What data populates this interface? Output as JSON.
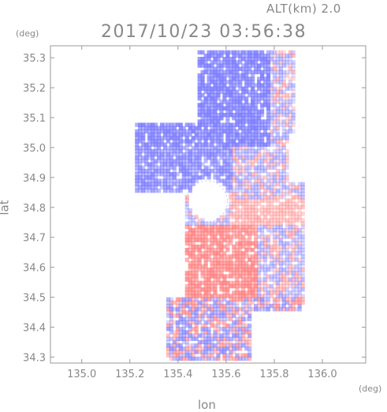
{
  "header": {
    "altitude": "ALT(km) 2.0",
    "timestamp": "2017/10/23 03:56:38"
  },
  "chart_data": {
    "type": "heatmap",
    "title": "2017/10/23 03:56:38",
    "subtitle": "ALT(km) 2.0",
    "xlabel": "lon",
    "ylabel": "lat",
    "x_unit": "(deg)",
    "y_unit": "(deg)",
    "xlim": [
      134.87,
      136.18
    ],
    "ylim": [
      34.28,
      35.34
    ],
    "x_ticks": [
      "135.0",
      "135.2",
      "135.4",
      "135.6",
      "135.8",
      "136.0"
    ],
    "y_ticks": [
      "34.3",
      "34.4",
      "34.5",
      "34.6",
      "34.7",
      "34.8",
      "34.9",
      "35.0",
      "35.1",
      "35.2",
      "35.3"
    ],
    "colors": {
      "negative": "#7b7bff",
      "positive": "#ff7b7b",
      "neutral": "#ffffff",
      "axis": "#999999"
    },
    "grid": false,
    "regions": [
      {
        "sign": "negative",
        "lon": [
          135.48,
          135.85
        ],
        "lat": [
          35.08,
          35.3
        ]
      },
      {
        "sign": "negative",
        "lon": [
          135.25,
          135.62
        ],
        "lat": [
          34.85,
          35.05
        ]
      },
      {
        "sign": "positive",
        "lon": [
          135.48,
          135.73
        ],
        "lat": [
          34.5,
          34.72
        ]
      },
      {
        "sign": "positive",
        "lon": [
          135.65,
          135.82
        ],
        "lat": [
          34.74,
          34.82
        ]
      },
      {
        "sign": "negative",
        "lon": [
          135.35,
          135.65
        ],
        "lat": [
          34.28,
          34.48
        ]
      }
    ]
  }
}
